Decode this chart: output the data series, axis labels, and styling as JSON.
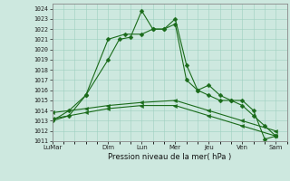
{
  "background_color": "#cde8df",
  "grid_color": "#9ecfbf",
  "line_color": "#1a6b1a",
  "marker_color": "#1a6b1a",
  "xlabel": "Pression niveau de la mer( hPa )",
  "ylim": [
    1011,
    1024.5
  ],
  "yticks": [
    1011,
    1012,
    1013,
    1014,
    1015,
    1016,
    1017,
    1018,
    1019,
    1020,
    1021,
    1022,
    1023,
    1024
  ],
  "day_labels": [
    "LuMar",
    "Dim",
    "Lun",
    "Mer",
    "Jeu",
    "Ven",
    "Sam"
  ],
  "day_positions": [
    0,
    10,
    16,
    22,
    28,
    34,
    40
  ],
  "xlim": [
    0,
    42
  ],
  "series1_x": [
    0,
    3,
    6,
    10,
    12,
    14,
    16,
    18,
    20,
    22,
    24,
    26,
    28,
    30,
    32,
    34,
    36,
    38,
    40
  ],
  "series1_y": [
    1013.0,
    1013.5,
    1015.5,
    1019.0,
    1021.0,
    1021.2,
    1023.8,
    1022.0,
    1022.0,
    1023.0,
    1018.5,
    1016.0,
    1015.5,
    1015.0,
    1015.0,
    1015.0,
    1014.0,
    1011.2,
    1011.5
  ],
  "series2_x": [
    0,
    3,
    6,
    10,
    13,
    16,
    18,
    20,
    22,
    24,
    26,
    28,
    30,
    32,
    34,
    36,
    38,
    40
  ],
  "series2_y": [
    1013.0,
    1014.0,
    1015.5,
    1021.0,
    1021.5,
    1021.5,
    1022.0,
    1022.0,
    1022.5,
    1017.0,
    1016.0,
    1016.5,
    1015.5,
    1015.0,
    1014.5,
    1013.5,
    1012.5,
    1011.5
  ],
  "series3_x": [
    0,
    6,
    10,
    16,
    22,
    28,
    34,
    40
  ],
  "series3_y": [
    1013.8,
    1014.2,
    1014.5,
    1014.8,
    1015.0,
    1014.0,
    1013.0,
    1012.0
  ],
  "series4_x": [
    0,
    6,
    10,
    16,
    22,
    28,
    34,
    40
  ],
  "series4_y": [
    1013.2,
    1013.8,
    1014.2,
    1014.5,
    1014.5,
    1013.5,
    1012.5,
    1011.5
  ]
}
